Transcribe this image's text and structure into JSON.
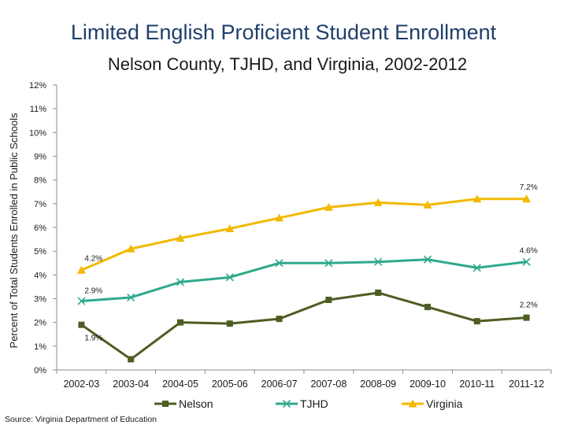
{
  "chart_data": {
    "type": "line",
    "title": "Limited English Proficient Student Enrollment",
    "subtitle": "Nelson County, TJHD, and Virginia, 2002-2012",
    "xlabel": "",
    "ylabel": "Percent of Total Students Enrolled in Public Schools",
    "ylim": [
      0,
      12
    ],
    "yticks": [
      "0%",
      "1%",
      "2%",
      "3%",
      "4%",
      "5%",
      "6%",
      "7%",
      "8%",
      "9%",
      "10%",
      "11%",
      "12%"
    ],
    "grid": false,
    "legend_position": "bottom",
    "categories": [
      "2002-03",
      "2003-04",
      "2004-05",
      "2005-06",
      "2006-07",
      "2007-08",
      "2008-09",
      "2009-10",
      "2010-11",
      "2011-12"
    ],
    "series": [
      {
        "name": "Nelson",
        "color": "#4e5d22",
        "marker": "square",
        "values": [
          1.9,
          0.45,
          2.0,
          1.95,
          2.15,
          2.95,
          3.25,
          2.65,
          2.05,
          2.2
        ]
      },
      {
        "name": "TJHD",
        "color": "#2fa98c",
        "marker": "x",
        "values": [
          2.9,
          3.05,
          3.7,
          3.9,
          4.5,
          4.5,
          4.55,
          4.65,
          4.3,
          4.55
        ]
      },
      {
        "name": "Virginia",
        "color": "#f2b900",
        "marker": "triangle",
        "values": [
          4.2,
          5.1,
          5.55,
          5.95,
          6.4,
          6.85,
          7.05,
          6.95,
          7.2,
          7.2
        ]
      }
    ],
    "data_labels": [
      {
        "series": "Virginia",
        "index": 0,
        "text": "4.2%"
      },
      {
        "series": "Virginia",
        "index": 9,
        "text": "7.2%"
      },
      {
        "series": "TJHD",
        "index": 0,
        "text": "2.9%"
      },
      {
        "series": "TJHD",
        "index": 9,
        "text": "4.6%"
      },
      {
        "series": "Nelson",
        "index": 0,
        "text": "1.9%"
      },
      {
        "series": "Nelson",
        "index": 9,
        "text": "2.2%"
      }
    ],
    "source": "Source: Virginia Department of Education"
  }
}
